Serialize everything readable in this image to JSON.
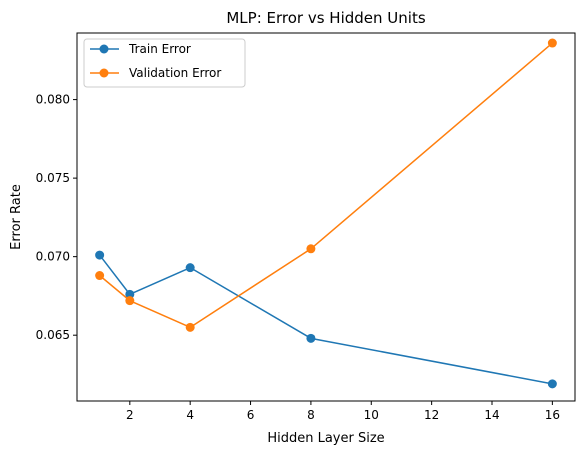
{
  "chart_data": {
    "type": "line",
    "title": "MLP: Error vs Hidden Units",
    "xlabel": "Hidden Layer Size",
    "ylabel": "Error Rate",
    "x": [
      1,
      2,
      4,
      8,
      16
    ],
    "xlim": [
      0.25,
      16.75
    ],
    "ylim": [
      0.06081,
      0.08424
    ],
    "xticks": [
      2,
      4,
      6,
      8,
      10,
      12,
      14,
      16
    ],
    "xtick_labels": [
      "2",
      "4",
      "6",
      "8",
      "10",
      "12",
      "14",
      "16"
    ],
    "yticks": [
      0.065,
      0.07,
      0.075,
      0.08
    ],
    "ytick_labels": [
      "0.065",
      "0.070",
      "0.075",
      "0.080"
    ],
    "grid": false,
    "legend_position": "top-left",
    "series": [
      {
        "name": "Train Error",
        "color": "#1f77b4",
        "marker": "circle",
        "values": [
          0.0701,
          0.0676,
          0.0693,
          0.0648,
          0.0619
        ]
      },
      {
        "name": "Validation Error",
        "color": "#ff7f0e",
        "marker": "circle",
        "values": [
          0.0688,
          0.0672,
          0.0655,
          0.0705,
          0.0836
        ]
      }
    ]
  }
}
